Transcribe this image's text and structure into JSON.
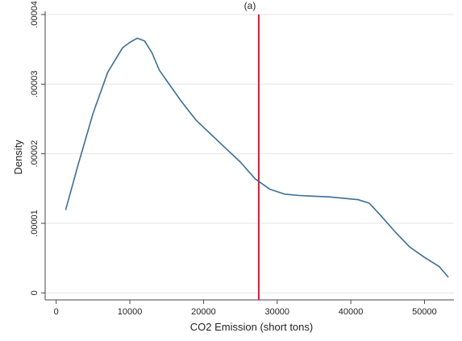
{
  "chart_data": {
    "type": "line",
    "panel_label": "(a)",
    "title": "",
    "xlabel": "CO2 Emission (short tons)",
    "ylabel": "Density",
    "xlim": [
      -1500,
      54000
    ],
    "ylim": [
      -1e-06,
      4e-05
    ],
    "x_ticks": [
      0,
      10000,
      20000,
      30000,
      40000,
      50000
    ],
    "x_tick_labels": [
      "0",
      "10000",
      "20000",
      "30000",
      "40000",
      "50000"
    ],
    "y_ticks": [
      0,
      1e-05,
      2e-05,
      3e-05,
      4e-05
    ],
    "y_tick_labels": [
      "0",
      ".00001",
      ".00002",
      ".00003",
      ".00004"
    ],
    "grid": true,
    "series": [
      {
        "x": [
          1300,
          3000,
          5000,
          7000,
          9000,
          10000,
          11000,
          12000,
          13000,
          14000,
          15000,
          17000,
          19000,
          21000,
          23000,
          25000,
          27000,
          29000,
          31000,
          33000,
          35000,
          37000,
          39000,
          41000,
          42500,
          44000,
          46000,
          48000,
          50000,
          52000,
          53200
        ],
        "y": [
          1.2e-05,
          1.85e-05,
          2.58e-05,
          3.17e-05,
          3.52e-05,
          3.6e-05,
          3.66e-05,
          3.62e-05,
          3.45e-05,
          3.2e-05,
          3.05e-05,
          2.75e-05,
          2.48e-05,
          2.28e-05,
          2.08e-05,
          1.88e-05,
          1.64e-05,
          1.49e-05,
          1.42e-05,
          1.4e-05,
          1.39e-05,
          1.38e-05,
          1.36e-05,
          1.34e-05,
          1.29e-05,
          1.12e-05,
          8.8e-06,
          6.6e-06,
          5.1e-06,
          3.8e-06,
          2.3e-06
        ],
        "color": "#3c6e96"
      }
    ],
    "reference_lines": [
      {
        "orientation": "vertical",
        "x": 27500,
        "color": "#c8203c"
      }
    ]
  }
}
